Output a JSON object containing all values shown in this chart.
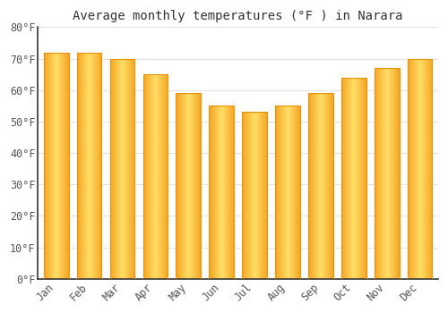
{
  "title": "Average monthly temperatures (°F ) in Narara",
  "months": [
    "Jan",
    "Feb",
    "Mar",
    "Apr",
    "May",
    "Jun",
    "Jul",
    "Aug",
    "Sep",
    "Oct",
    "Nov",
    "Dec"
  ],
  "values": [
    72,
    72,
    70,
    65,
    59,
    55,
    53,
    55,
    59,
    64,
    67,
    70
  ],
  "bar_color_edge": "#E8920A",
  "bar_color_center": "#FFD060",
  "bar_color_main": "#F5A623",
  "ylim": [
    0,
    80
  ],
  "yticks": [
    0,
    10,
    20,
    30,
    40,
    50,
    60,
    70,
    80
  ],
  "ytick_labels": [
    "0°F",
    "10°F",
    "20°F",
    "30°F",
    "40°F",
    "50°F",
    "60°F",
    "70°F",
    "80°F"
  ],
  "background_color": "#FFFFFF",
  "grid_color": "#E0E0E0",
  "title_fontsize": 10,
  "tick_fontsize": 8.5,
  "tick_color": "#555555"
}
